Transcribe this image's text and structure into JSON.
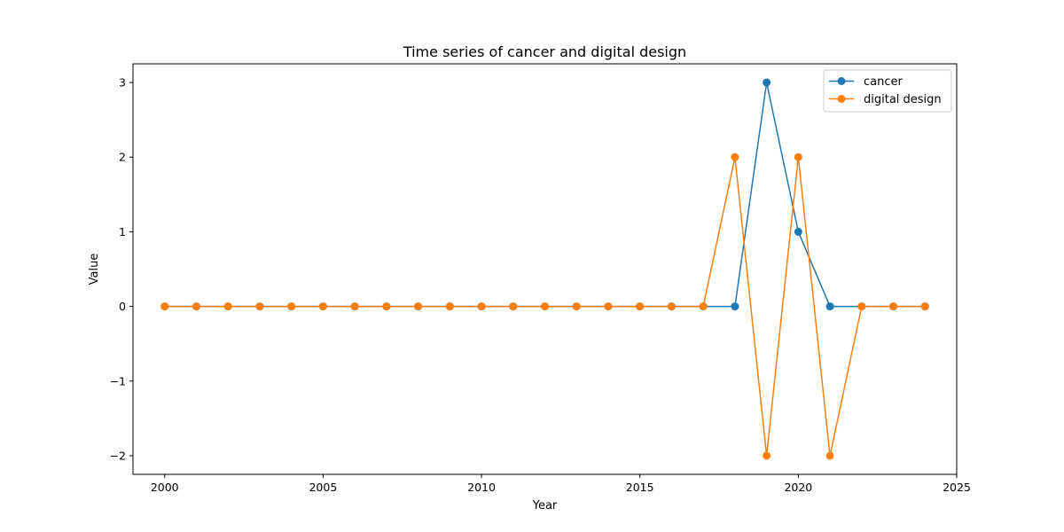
{
  "chart_data": {
    "type": "line",
    "title": "Time series of cancer and digital design",
    "xlabel": "Year",
    "ylabel": "Value",
    "xlim": [
      1999,
      2025
    ],
    "ylim": [
      -2.25,
      3.25
    ],
    "x_ticks": [
      2000,
      2005,
      2010,
      2015,
      2020,
      2025
    ],
    "y_ticks": [
      3,
      2,
      1,
      0,
      -1,
      -2
    ],
    "y_tick_labels": [
      "3",
      "2",
      "1",
      "0",
      "−1",
      "−2"
    ],
    "grid": false,
    "legend_position": "top-right",
    "x": [
      2000,
      2001,
      2002,
      2003,
      2004,
      2005,
      2006,
      2007,
      2008,
      2009,
      2010,
      2011,
      2012,
      2013,
      2014,
      2015,
      2016,
      2017,
      2018,
      2019,
      2020,
      2021,
      2022,
      2023,
      2024
    ],
    "series": [
      {
        "name": "cancer",
        "color": "#1f77b4",
        "values": [
          0,
          0,
          0,
          0,
          0,
          0,
          0,
          0,
          0,
          0,
          0,
          0,
          0,
          0,
          0,
          0,
          0,
          0,
          0,
          3,
          1,
          0,
          0,
          0,
          0
        ]
      },
      {
        "name": "digital design",
        "color": "#ff7f0e",
        "values": [
          0,
          0,
          0,
          0,
          0,
          0,
          0,
          0,
          0,
          0,
          0,
          0,
          0,
          0,
          0,
          0,
          0,
          0,
          2,
          -2,
          2,
          -2,
          0,
          0,
          0
        ]
      }
    ]
  }
}
